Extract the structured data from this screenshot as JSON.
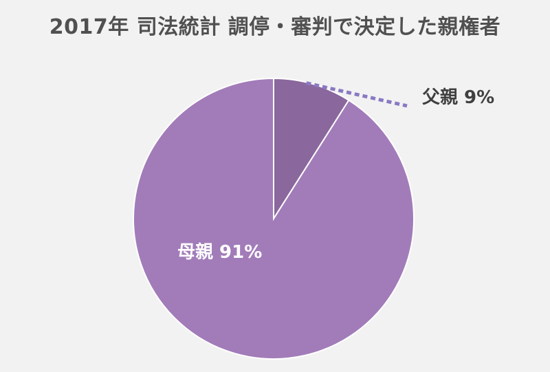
{
  "chart_data": {
    "type": "pie",
    "title": "2017年 司法統計 調停・審判で決定した親権者",
    "slices": [
      {
        "name": "父親",
        "value": 9,
        "display": "父親 9%",
        "color": "#8a679c",
        "label_color": "#404040",
        "label_position": "outside"
      },
      {
        "name": "母親",
        "value": 91,
        "display": "母親 91%",
        "color": "#a27cb9",
        "label_color": "#ffffff",
        "label_position": "inside"
      }
    ],
    "leader_line_color": "#8a79c2"
  }
}
